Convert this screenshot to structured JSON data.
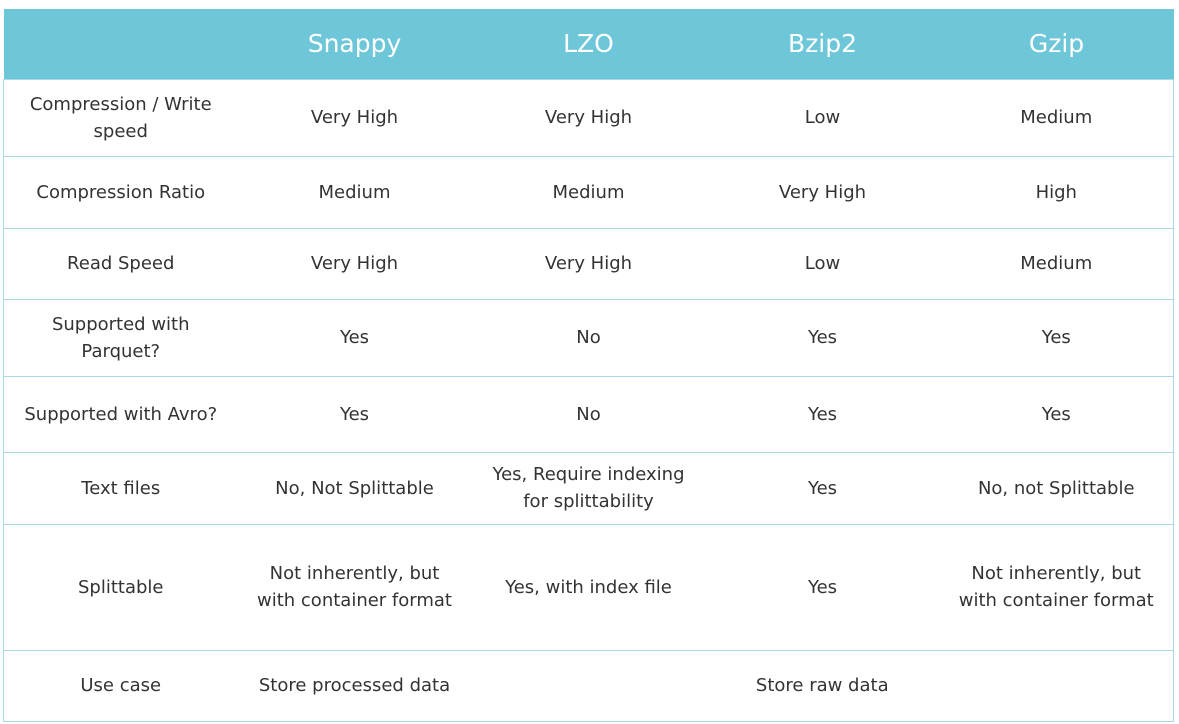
{
  "header": {
    "corner": "",
    "columns": [
      "Snappy",
      "LZO",
      "Bzip2",
      "Gzip"
    ]
  },
  "rows": [
    {
      "label": "Compression / Write speed",
      "cells": [
        "Very High",
        "Very High",
        "Low",
        "Medium"
      ]
    },
    {
      "label": "Compression Ratio",
      "cells": [
        "Medium",
        "Medium",
        "Very High",
        "High"
      ]
    },
    {
      "label": "Read Speed",
      "cells": [
        "Very High",
        "Very High",
        "Low",
        "Medium"
      ]
    },
    {
      "label": "Supported with Parquet?",
      "cells": [
        "Yes",
        "No",
        "Yes",
        "Yes"
      ]
    },
    {
      "label": "Supported with Avro?",
      "cells": [
        "Yes",
        "No",
        "Yes",
        "Yes"
      ]
    },
    {
      "label": "Text files",
      "cells": [
        "No, Not Splittable",
        "Yes, Require indexing for splittability",
        "Yes",
        "No, not Splittable"
      ]
    },
    {
      "label": "Splittable",
      "cells": [
        "Not inherently, but with container format",
        "Yes, with index file",
        "Yes",
        "Not inherently, but with container format"
      ]
    }
  ],
  "use_case": {
    "label": "Use case",
    "snappy": "Store processed data",
    "others": "Store raw data"
  },
  "colors": {
    "header_bg": "#6ec6d9",
    "header_text": "#ffffff",
    "border": "#a9d9e6",
    "body_text": "#333333"
  }
}
